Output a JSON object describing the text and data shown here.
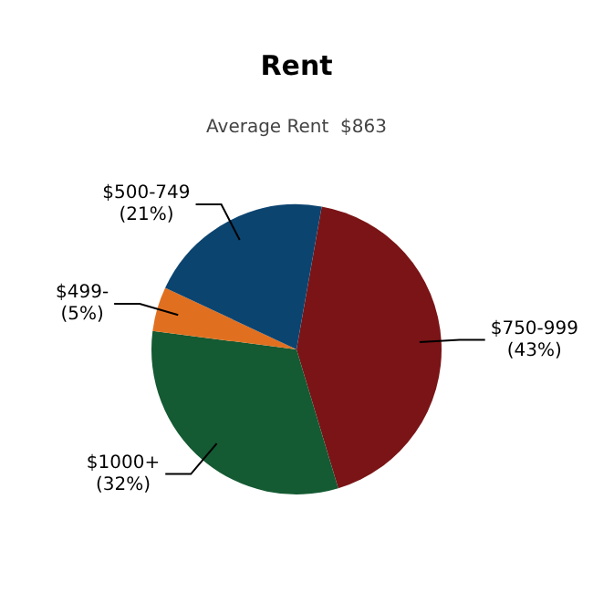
{
  "chart_data": {
    "type": "pie",
    "title": "Rent",
    "subtitle": "Average Rent  $863",
    "categories": [
      "$750-999",
      "$1000+",
      "$499-",
      "$500-749"
    ],
    "values": [
      43,
      32,
      5,
      21
    ],
    "value_labels": [
      "(43%)",
      "(32%)",
      "(5%)",
      "(21%)"
    ],
    "colors": [
      "#7a1416",
      "#145a32",
      "#e07020",
      "#0c4470"
    ],
    "legend": false
  }
}
